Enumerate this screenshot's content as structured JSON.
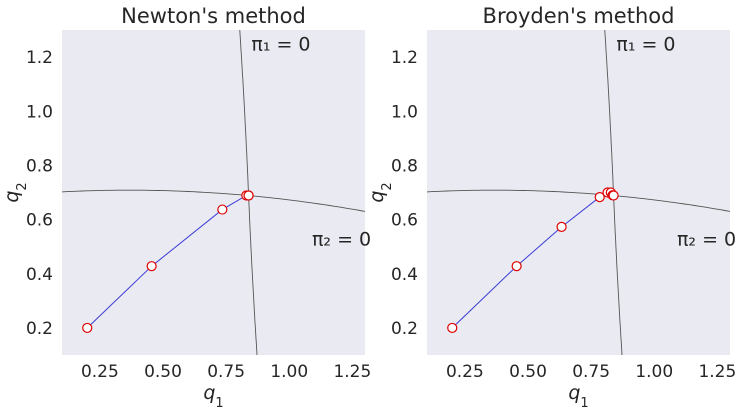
{
  "chart_data": [
    {
      "type": "line",
      "title": "Newton's method",
      "xlabel": "q_1",
      "ylabel": "q_2",
      "xlim": [
        0.1,
        1.3
      ],
      "ylim": [
        0.1,
        1.3
      ],
      "xticks": [
        0.25,
        0.5,
        0.75,
        1.0,
        1.25
      ],
      "xtick_labels": [
        "0.25",
        "0.50",
        "0.75",
        "1.00",
        "1.25"
      ],
      "yticks": [
        0.2,
        0.4,
        0.6,
        0.8,
        1.0,
        1.2
      ],
      "ytick_labels": [
        "0.2",
        "0.4",
        "0.6",
        "0.8",
        "1.0",
        "1.2"
      ],
      "grid": false,
      "iterates": {
        "x": [
          0.2,
          0.455,
          0.735,
          0.83,
          0.839,
          0.839
        ],
        "y": [
          0.2,
          0.428,
          0.637,
          0.689,
          0.689,
          0.689
        ]
      },
      "annotations": [
        {
          "text": "π₁ = 0",
          "x": 0.85,
          "y": 1.25
        },
        {
          "text": "π₂ = 0",
          "x": 1.09,
          "y": 0.53
        }
      ]
    },
    {
      "type": "line",
      "title": "Broyden's method",
      "xlabel": "q_1",
      "ylabel": "q_2",
      "xlim": [
        0.1,
        1.3
      ],
      "ylim": [
        0.1,
        1.3
      ],
      "xticks": [
        0.25,
        0.5,
        0.75,
        1.0,
        1.25
      ],
      "xtick_labels": [
        "0.25",
        "0.50",
        "0.75",
        "1.00",
        "1.25"
      ],
      "yticks": [
        0.2,
        0.4,
        0.6,
        0.8,
        1.0,
        1.2
      ],
      "ytick_labels": [
        "0.2",
        "0.4",
        "0.6",
        "0.8",
        "1.0",
        "1.2"
      ],
      "grid": false,
      "iterates": {
        "x": [
          0.2,
          0.455,
          0.633,
          0.784,
          0.815,
          0.828,
          0.835,
          0.839
        ],
        "y": [
          0.2,
          0.428,
          0.573,
          0.683,
          0.7,
          0.7,
          0.69,
          0.689
        ]
      },
      "annotations": [
        {
          "text": "π₁ = 0",
          "x": 0.85,
          "y": 1.25
        },
        {
          "text": "π₂ = 0",
          "x": 1.09,
          "y": 0.53
        }
      ]
    }
  ],
  "colors": {
    "background": "#eaeaf2",
    "path_line": "#3b3bd6",
    "marker_edge": "#e00000",
    "marker_face": "#ffffff",
    "contour": "#555555",
    "text": "#262626"
  }
}
